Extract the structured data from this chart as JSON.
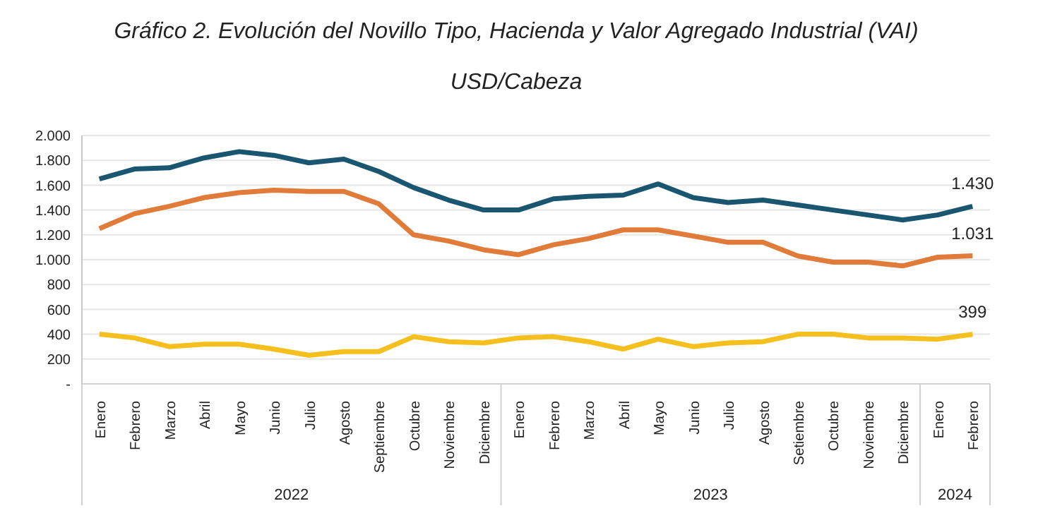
{
  "chart_data": {
    "type": "line",
    "title": "Gráfico 2. Evolución del Novillo Tipo, Hacienda y Valor Agregado Industrial (VAI)",
    "subtitle": "USD/Cabeza",
    "categories": [
      "Enero",
      "Febrero",
      "Marzo",
      "Abril",
      "Mayo",
      "Junio",
      "Julio",
      "Agosto",
      "Septiembre",
      "Octubre",
      "Noviembre",
      "Diciembre",
      "Enero",
      "Febrero",
      "Marzo",
      "Abril",
      "Mayo",
      "Junio",
      "Julio",
      "Agosto",
      "Setiembre",
      "Octubre",
      "Noviembre",
      "Diciembre",
      "Enero",
      "Febrero"
    ],
    "series": [
      {
        "color": "#1b5670",
        "values": [
          1650,
          1730,
          1740,
          1820,
          1870,
          1840,
          1780,
          1810,
          1710,
          1580,
          1480,
          1400,
          1400,
          1490,
          1510,
          1520,
          1610,
          1500,
          1460,
          1480,
          1440,
          1400,
          1360,
          1320,
          1360,
          1430
        ],
        "value_labels": [
          null,
          null,
          null,
          null,
          null,
          null,
          null,
          null,
          null,
          null,
          null,
          null,
          null,
          null,
          null,
          null,
          null,
          null,
          null,
          null,
          null,
          null,
          null,
          null,
          null,
          "1.430"
        ]
      },
      {
        "color": "#e07b39",
        "values": [
          1250,
          1370,
          1430,
          1500,
          1540,
          1560,
          1550,
          1550,
          1450,
          1200,
          1150,
          1080,
          1040,
          1120,
          1170,
          1240,
          1240,
          1190,
          1140,
          1140,
          1030,
          980,
          980,
          950,
          1020,
          1031
        ],
        "value_labels": [
          null,
          null,
          null,
          null,
          null,
          null,
          null,
          null,
          null,
          null,
          null,
          null,
          null,
          null,
          null,
          null,
          null,
          null,
          null,
          null,
          null,
          null,
          null,
          null,
          null,
          "1.031"
        ]
      },
      {
        "color": "#f5bf1d",
        "values": [
          400,
          370,
          300,
          320,
          320,
          280,
          230,
          260,
          260,
          380,
          340,
          330,
          370,
          380,
          340,
          280,
          360,
          300,
          330,
          340,
          400,
          400,
          370,
          370,
          360,
          399
        ],
        "value_labels": [
          null,
          null,
          null,
          null,
          null,
          null,
          null,
          null,
          null,
          null,
          null,
          null,
          null,
          null,
          null,
          null,
          null,
          null,
          null,
          null,
          null,
          null,
          null,
          null,
          null,
          "399"
        ]
      }
    ],
    "ylim": [
      0,
      2000
    ],
    "yticks": [
      {
        "value": 0,
        "label": "-"
      },
      200,
      400,
      600,
      800,
      {
        "value": 1000,
        "label": "1.000"
      },
      {
        "value": 1200,
        "label": "1.200"
      },
      {
        "value": 1400,
        "label": "1.400"
      },
      {
        "value": 1600,
        "label": "1.600"
      },
      {
        "value": 1800,
        "label": "1.800"
      },
      {
        "value": 2000,
        "label": "2.000"
      }
    ],
    "annotations": [
      "2022",
      "2023",
      "2024"
    ],
    "grid": "y",
    "legend": false,
    "marker": "none",
    "line_style": "solid"
  }
}
